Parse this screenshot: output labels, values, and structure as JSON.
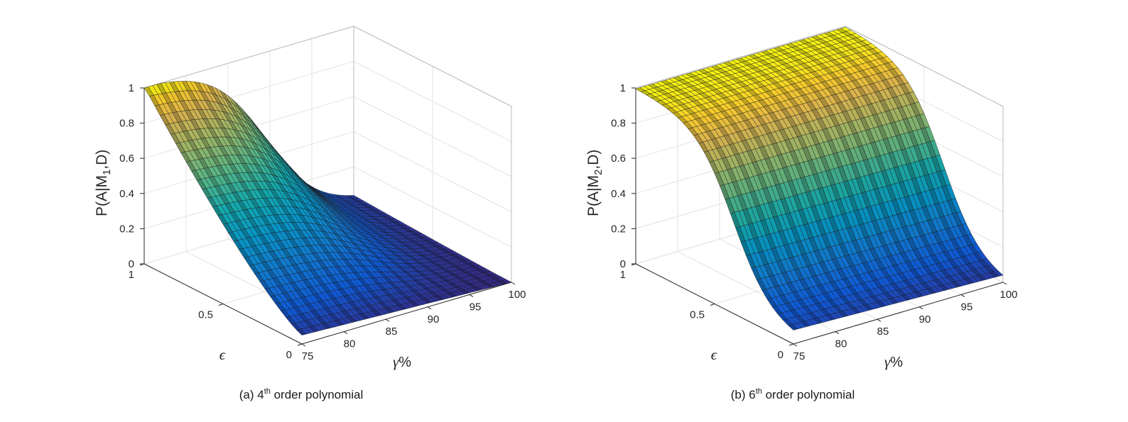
{
  "chart_data": [
    {
      "type": "surface",
      "panel_label": "(a)",
      "caption_order": "4",
      "caption_sup": "th",
      "caption_rest": " order polynomial",
      "zlabel": {
        "prefix": "P(A|M",
        "sub": "1",
        "suffix": ",D)"
      },
      "xlabel": {
        "symbol": "γ",
        "unit": "%"
      },
      "ylabel": "ϵ",
      "x_range": [
        75,
        100
      ],
      "y_range": [
        0,
        1
      ],
      "z_range": [
        0,
        1
      ],
      "x_ticks": [
        "75",
        "80",
        "85",
        "90",
        "95",
        "100"
      ],
      "y_ticks": [
        "0",
        "0.5",
        "1"
      ],
      "z_ticks": [
        "0",
        "0.2",
        "0.4",
        "0.6",
        "0.8",
        "1"
      ],
      "grid": true,
      "colormap": "parula",
      "surface_samples": {
        "gamma_percent": [
          75,
          80,
          85,
          90,
          95,
          100
        ],
        "P_at_eps_1": [
          1.0,
          0.97,
          0.86,
          0.62,
          0.34,
          0.12
        ],
        "P_at_eps_0": [
          0.08,
          0.04,
          0.02,
          0.01,
          0.005,
          0.0
        ]
      }
    },
    {
      "type": "surface",
      "panel_label": "(b)",
      "caption_order": "6",
      "caption_sup": "th",
      "caption_rest": " order polynomial",
      "zlabel": {
        "prefix": "P(A|M",
        "sub": "2",
        "suffix": ",D)"
      },
      "xlabel": {
        "symbol": "γ",
        "unit": "%"
      },
      "ylabel": "ϵ",
      "x_range": [
        75,
        100
      ],
      "y_range": [
        0,
        1
      ],
      "z_range": [
        0,
        1
      ],
      "x_ticks": [
        "75",
        "80",
        "85",
        "90",
        "95",
        "100"
      ],
      "y_ticks": [
        "0",
        "0.5",
        "1"
      ],
      "z_ticks": [
        "0",
        "0.2",
        "0.4",
        "0.6",
        "0.8",
        "1"
      ],
      "grid": true,
      "colormap": "parula",
      "surface_samples": {
        "gamma_percent": [
          75,
          80,
          85,
          90,
          95,
          100
        ],
        "P_at_eps_1": [
          1.0,
          1.0,
          1.0,
          1.0,
          1.0,
          1.0
        ],
        "P_at_eps_0": [
          0.06,
          0.03,
          0.02,
          0.01,
          0.005,
          0.0
        ]
      }
    }
  ]
}
